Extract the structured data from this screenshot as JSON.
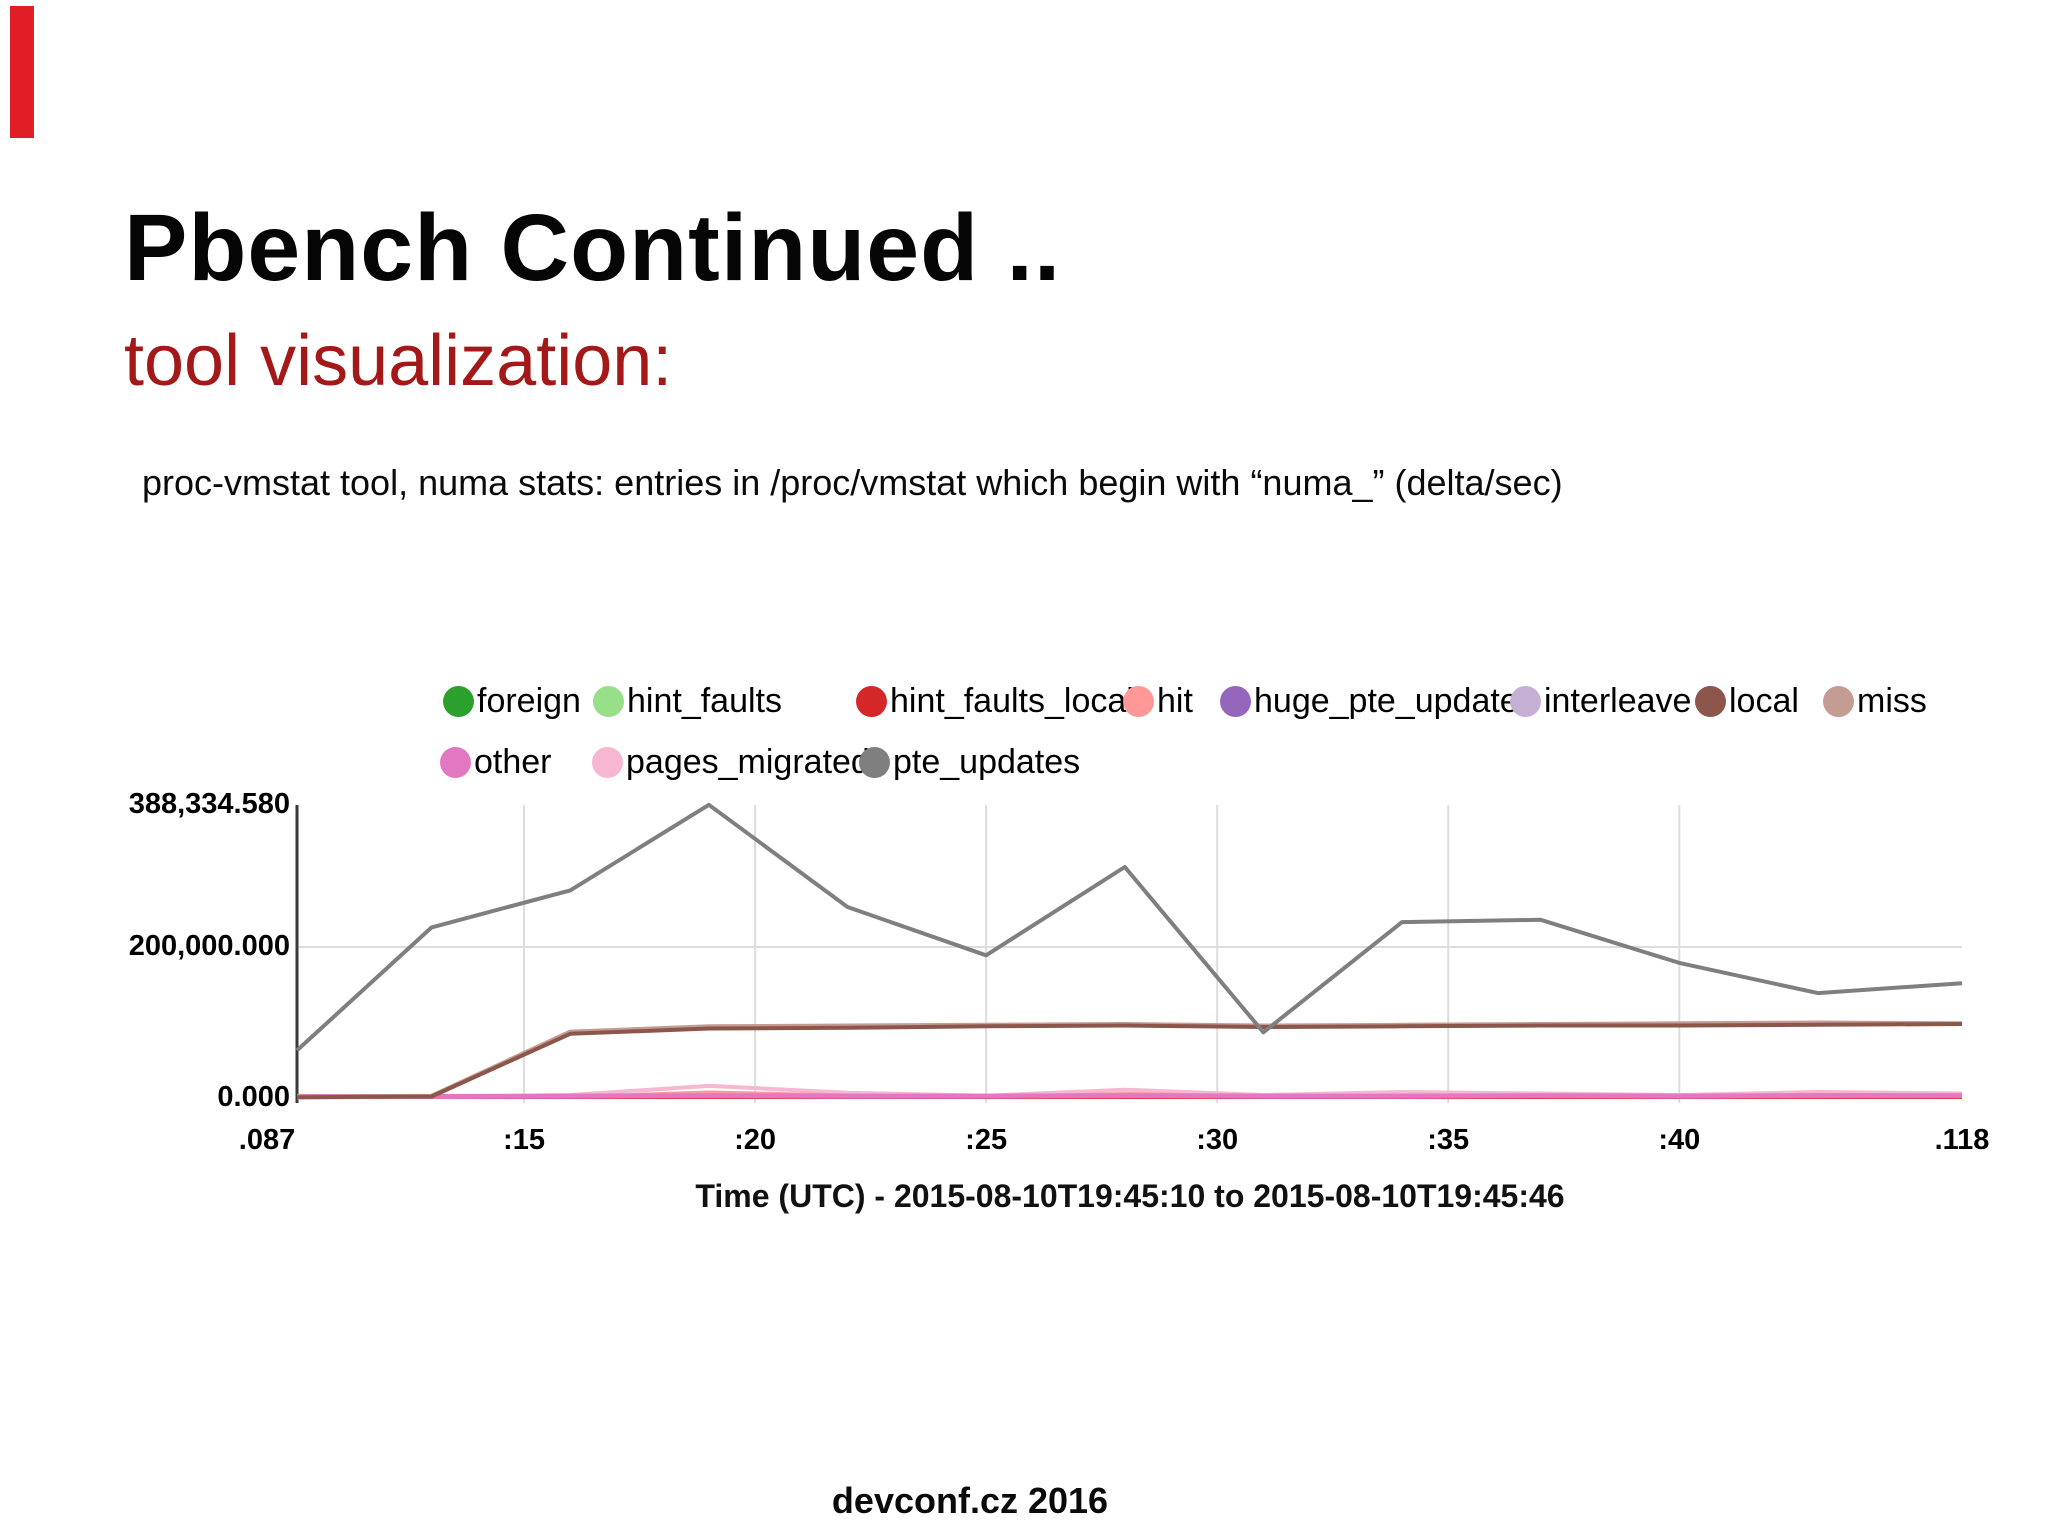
{
  "slide": {
    "title": "Pbench Continued ..",
    "subtitle": "tool visualization:",
    "subtitle_color": "#a31919",
    "accent_bar_color": "#e11d26",
    "caption": "proc-vmstat tool, numa stats: entries in /proc/vmstat which begin with “numa_” (delta/sec)",
    "footer": "devconf.cz 2016"
  },
  "chart_data": {
    "type": "line",
    "title": "",
    "xlabel": "Time (UTC) - 2015-08-10T19:45:10 to 2015-08-10T19:45:46",
    "ylabel": "",
    "ylim": [
      0,
      388334.58
    ],
    "legend_position": "top",
    "grid": "single horizontal gridline at 200,000; vertical gridlines at 5-second ticks",
    "yticks": [
      {
        "label": "388,334.580",
        "value": 388334.58
      },
      {
        "label": "200,000.000",
        "value": 200000
      },
      {
        "label": "0.000",
        "value": 0
      }
    ],
    "xticks": [
      {
        "label": ".087",
        "t": 0,
        "grid": false
      },
      {
        "label": ":15",
        "t": 4.913,
        "grid": true
      },
      {
        "label": ":20",
        "t": 9.913,
        "grid": true
      },
      {
        "label": ":25",
        "t": 14.913,
        "grid": true
      },
      {
        "label": ":30",
        "t": 19.913,
        "grid": true
      },
      {
        "label": ":35",
        "t": 24.913,
        "grid": true
      },
      {
        "label": ":40",
        "t": 29.913,
        "grid": true
      },
      {
        "label": ".118",
        "t": 36.031,
        "grid": false
      }
    ],
    "x_seconds": [
      0,
      2.913,
      5.913,
      8.913,
      11.913,
      14.913,
      17.913,
      20.913,
      23.913,
      26.913,
      29.913,
      32.913,
      36.031
    ],
    "series": [
      {
        "name": "foreign",
        "color": "#2ca02c",
        "width": 2,
        "values": [
          0,
          0,
          0,
          0,
          0,
          0,
          0,
          0,
          0,
          0,
          0,
          0,
          0
        ]
      },
      {
        "name": "hint_faults",
        "color": "#98df8a",
        "width": 2,
        "values": [
          0,
          0,
          0,
          0,
          0,
          0,
          0,
          0,
          0,
          0,
          0,
          0,
          0
        ]
      },
      {
        "name": "hint_faults_local",
        "color": "#d62728",
        "width": 2,
        "values": [
          0,
          0,
          0,
          0,
          0,
          0,
          0,
          0,
          0,
          0,
          0,
          0,
          0
        ]
      },
      {
        "name": "hit",
        "color": "#ff9896",
        "width": 3,
        "values": [
          500,
          1000,
          2000,
          8000,
          4000,
          2000,
          6000,
          3000,
          3000,
          4000,
          3000,
          5000,
          4000
        ]
      },
      {
        "name": "huge_pte_updates",
        "color": "#9467bd",
        "width": 2,
        "values": [
          0,
          0,
          0,
          0,
          0,
          0,
          0,
          0,
          0,
          0,
          0,
          0,
          0
        ]
      },
      {
        "name": "interleave",
        "color": "#c5b0d5",
        "width": 2,
        "values": [
          0,
          0,
          0,
          0,
          0,
          0,
          0,
          0,
          0,
          0,
          0,
          0,
          0
        ]
      },
      {
        "name": "local",
        "color": "#8c564b",
        "width": 4,
        "values": [
          1000,
          2000,
          85000,
          92000,
          93000,
          95000,
          96000,
          94000,
          95000,
          96000,
          96000,
          97000,
          98000
        ]
      },
      {
        "name": "miss",
        "color": "#c49c94",
        "width": 4,
        "values": [
          1500,
          3000,
          88000,
          95000,
          96000,
          97000,
          98000,
          96000,
          97000,
          98000,
          99000,
          100000,
          99000
        ]
      },
      {
        "name": "other",
        "color": "#e377c2",
        "width": 5,
        "values": [
          2000,
          2000,
          2500,
          3000,
          2500,
          2500,
          3000,
          2500,
          2500,
          3000,
          2500,
          3000,
          3000
        ]
      },
      {
        "name": "pages_migrated",
        "color": "#f7b6d2",
        "width": 4,
        "values": [
          500,
          1500,
          4000,
          16000,
          7000,
          3000,
          11000,
          4000,
          8000,
          6000,
          4000,
          8000,
          6000
        ]
      },
      {
        "name": "pte_updates",
        "color": "#7f7f7f",
        "width": 4,
        "values": [
          63000,
          226000,
          275000,
          388334.58,
          253000,
          189000,
          306000,
          87000,
          233000,
          236000,
          179000,
          139000,
          152000
        ]
      }
    ]
  }
}
